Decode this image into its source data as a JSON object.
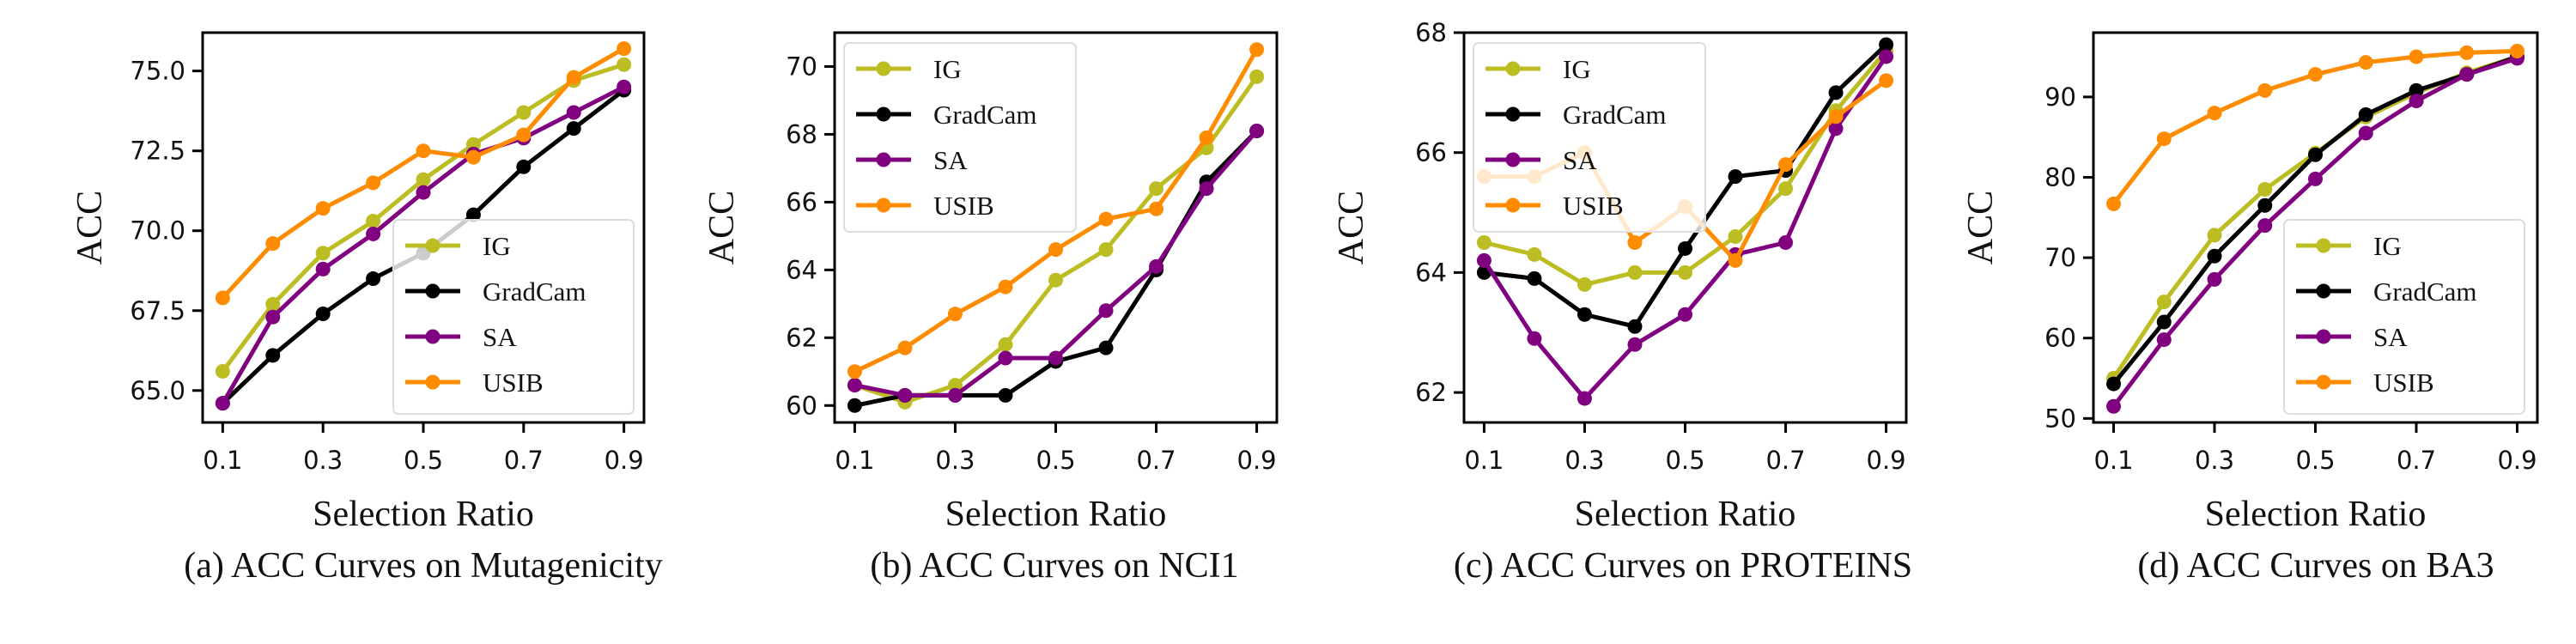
{
  "colors": {
    "IG": "#bcbd22",
    "GradCam": "#000000",
    "SA": "#800080",
    "USIB": "#ff8c00",
    "legend_border": "#dddddd"
  },
  "chart_data": [
    {
      "type": "line",
      "caption": "(a) ACC Curves on Mutagenicity",
      "xlabel": "Selection Ratio",
      "ylabel": "ACC",
      "x": [
        0.1,
        0.2,
        0.3,
        0.4,
        0.5,
        0.6,
        0.7,
        0.8,
        0.9
      ],
      "xticks": [
        "0.1",
        "0.3",
        "0.5",
        "0.7",
        "0.9"
      ],
      "xtick_values": [
        0.1,
        0.3,
        0.5,
        0.7,
        0.9
      ],
      "xlim": [
        0.06,
        0.94
      ],
      "ylim": [
        64.0,
        76.2
      ],
      "yticks": [
        "65.0",
        "67.5",
        "70.0",
        "72.5",
        "75.0"
      ],
      "ytick_values": [
        65.0,
        67.5,
        70.0,
        72.5,
        75.0
      ],
      "legend_position": "lower-right",
      "series": [
        {
          "name": "IG",
          "values": [
            65.6,
            67.7,
            69.3,
            70.3,
            71.6,
            72.7,
            73.7,
            74.7,
            75.2
          ]
        },
        {
          "name": "GradCam",
          "values": [
            64.6,
            66.1,
            67.4,
            68.5,
            69.3,
            70.5,
            72.0,
            73.2,
            74.4
          ]
        },
        {
          "name": "SA",
          "values": [
            64.6,
            67.3,
            68.8,
            69.9,
            71.2,
            72.4,
            72.9,
            73.7,
            74.5
          ]
        },
        {
          "name": "USIB",
          "values": [
            67.9,
            69.6,
            70.7,
            71.5,
            72.5,
            72.3,
            73.0,
            74.8,
            75.7
          ]
        }
      ]
    },
    {
      "type": "line",
      "caption": "(b) ACC Curves on NCI1",
      "xlabel": "Selection Ratio",
      "ylabel": "ACC",
      "x": [
        0.1,
        0.2,
        0.3,
        0.4,
        0.5,
        0.6,
        0.7,
        0.8,
        0.9
      ],
      "xticks": [
        "0.1",
        "0.3",
        "0.5",
        "0.7",
        "0.9"
      ],
      "xtick_values": [
        0.1,
        0.3,
        0.5,
        0.7,
        0.9
      ],
      "xlim": [
        0.06,
        0.94
      ],
      "ylim": [
        59.5,
        71.0
      ],
      "yticks": [
        "60",
        "62",
        "64",
        "66",
        "68",
        "70"
      ],
      "ytick_values": [
        60,
        62,
        64,
        66,
        68,
        70
      ],
      "legend_position": "top-left",
      "series": [
        {
          "name": "IG",
          "values": [
            60.6,
            60.1,
            60.6,
            61.8,
            63.7,
            64.6,
            66.4,
            67.6,
            69.7
          ]
        },
        {
          "name": "GradCam",
          "values": [
            60.0,
            60.3,
            60.3,
            60.3,
            61.3,
            61.7,
            64.0,
            66.6,
            68.1
          ]
        },
        {
          "name": "SA",
          "values": [
            60.6,
            60.3,
            60.3,
            61.4,
            61.4,
            62.8,
            64.1,
            66.4,
            68.1
          ]
        },
        {
          "name": "USIB",
          "values": [
            61.0,
            61.7,
            62.7,
            63.5,
            64.6,
            65.5,
            65.8,
            67.9,
            70.5
          ]
        }
      ]
    },
    {
      "type": "line",
      "caption": "(c) ACC Curves on PROTEINS",
      "xlabel": "Selection Ratio",
      "ylabel": "ACC",
      "x": [
        0.1,
        0.2,
        0.3,
        0.4,
        0.5,
        0.6,
        0.7,
        0.8,
        0.9
      ],
      "xticks": [
        "0.1",
        "0.3",
        "0.5",
        "0.7",
        "0.9"
      ],
      "xtick_values": [
        0.1,
        0.3,
        0.5,
        0.7,
        0.9
      ],
      "xlim": [
        0.06,
        0.94
      ],
      "ylim": [
        61.5,
        68.0
      ],
      "yticks": [
        "62",
        "64",
        "66",
        "68"
      ],
      "ytick_values": [
        62,
        64,
        66,
        68
      ],
      "legend_position": "top-left",
      "series": [
        {
          "name": "IG",
          "values": [
            64.5,
            64.3,
            63.8,
            64.0,
            64.0,
            64.6,
            65.4,
            66.7,
            67.7
          ]
        },
        {
          "name": "GradCam",
          "values": [
            64.0,
            63.9,
            63.3,
            63.1,
            64.4,
            65.6,
            65.7,
            67.0,
            67.8
          ]
        },
        {
          "name": "SA",
          "values": [
            64.2,
            62.9,
            61.9,
            62.8,
            63.3,
            64.3,
            64.5,
            66.4,
            67.6
          ]
        },
        {
          "name": "USIB",
          "values": [
            65.6,
            65.6,
            66.0,
            64.5,
            65.1,
            64.2,
            65.8,
            66.6,
            67.2
          ]
        }
      ]
    },
    {
      "type": "line",
      "caption": "(d) ACC Curves on BA3",
      "xlabel": "Selection Ratio",
      "ylabel": "ACC",
      "x": [
        0.1,
        0.2,
        0.3,
        0.4,
        0.5,
        0.6,
        0.7,
        0.8,
        0.9
      ],
      "xticks": [
        "0.1",
        "0.3",
        "0.5",
        "0.7",
        "0.9"
      ],
      "xtick_values": [
        0.1,
        0.3,
        0.5,
        0.7,
        0.9
      ],
      "xlim": [
        0.06,
        0.94
      ],
      "ylim": [
        49.5,
        98.0
      ],
      "yticks": [
        "50",
        "60",
        "70",
        "80",
        "90"
      ],
      "ytick_values": [
        50,
        60,
        70,
        80,
        90
      ],
      "legend_position": "lower-right",
      "series": [
        {
          "name": "IG",
          "values": [
            55.0,
            64.5,
            72.8,
            78.5,
            83.0,
            87.5,
            90.5,
            93.0,
            95.0
          ]
        },
        {
          "name": "GradCam",
          "values": [
            54.3,
            62.0,
            70.2,
            76.5,
            82.8,
            87.8,
            90.8,
            92.8,
            95.0
          ]
        },
        {
          "name": "SA",
          "values": [
            51.5,
            59.8,
            67.3,
            74.0,
            79.8,
            85.5,
            89.5,
            92.8,
            94.8
          ]
        },
        {
          "name": "USIB",
          "values": [
            76.7,
            84.8,
            88.0,
            90.8,
            92.8,
            94.3,
            95.0,
            95.5,
            95.7
          ]
        }
      ]
    }
  ]
}
